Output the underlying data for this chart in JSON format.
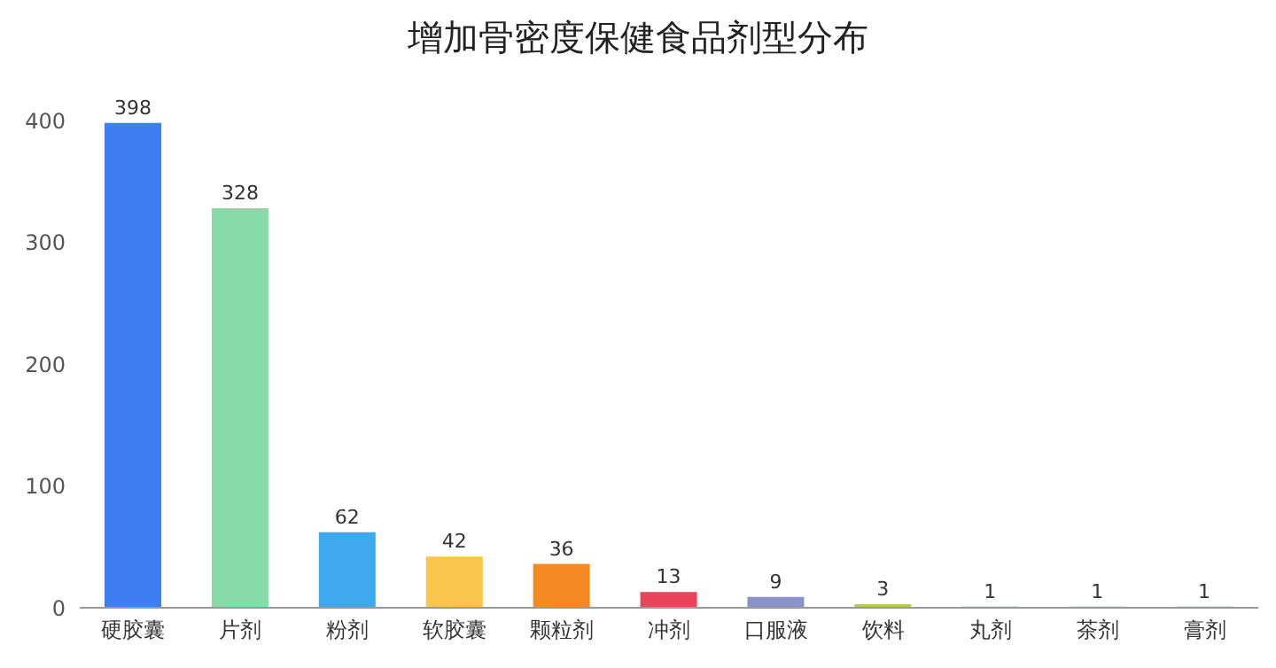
{
  "chart_data": {
    "type": "bar",
    "title": "增加骨密度保健食品剂型分布",
    "categories": [
      "硬胶囊",
      "片剂",
      "粉剂",
      "软胶囊",
      "颗粒剂",
      "冲剂",
      "口服液",
      "饮料",
      "丸剂",
      "茶剂",
      "膏剂"
    ],
    "values": [
      398,
      328,
      62,
      42,
      36,
      13,
      9,
      3,
      1,
      1,
      1
    ],
    "colors": [
      "#3d7ef5",
      "#86dba6",
      "#3fa9f0",
      "#f9c54a",
      "#f58a23",
      "#e8455a",
      "#8a93c9",
      "#b5c94a",
      "#43b07a",
      "#5fb3c9",
      "#3bb06a"
    ],
    "ylim": [
      0,
      400
    ],
    "yticks": [
      0,
      100,
      200,
      300,
      400
    ],
    "data_labels": true,
    "grid": false
  }
}
